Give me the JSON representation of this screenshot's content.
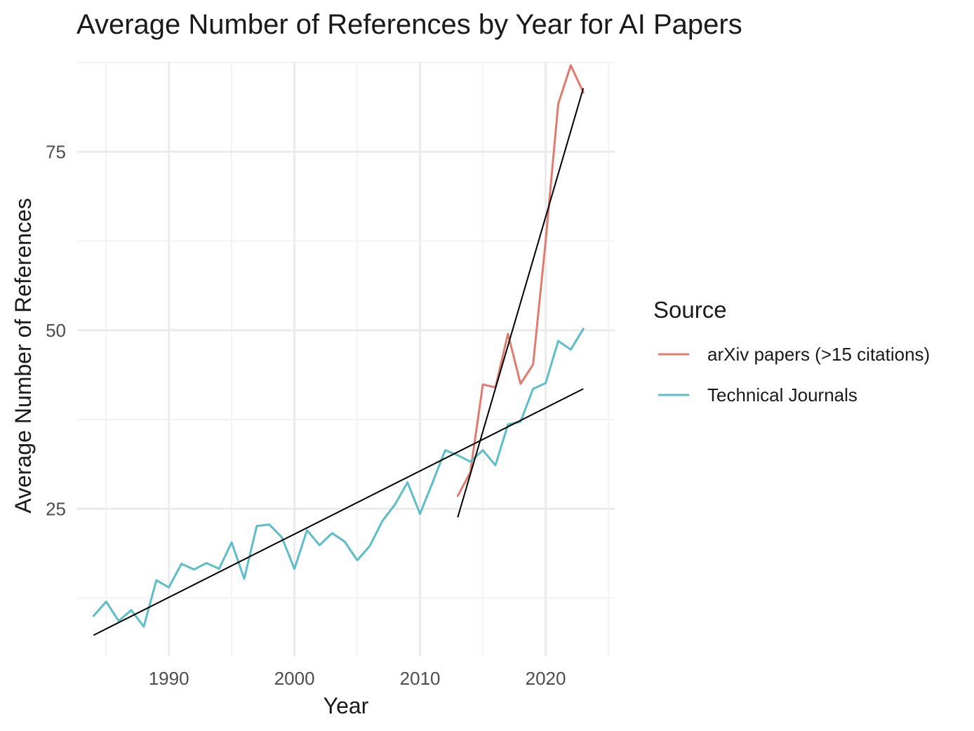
{
  "chart_data": {
    "type": "line",
    "title": "Average Number of References by Year for AI Papers",
    "xlabel": "Year",
    "ylabel": "Average Number of References",
    "xlim": [
      1982.7,
      2025.5
    ],
    "ylim": [
      4.3,
      87.6
    ],
    "x_ticks": [
      1990,
      2000,
      2010,
      2020
    ],
    "y_ticks": [
      25,
      50,
      75
    ],
    "x_minor_grid": [
      1985,
      1995,
      2005,
      2015,
      2025
    ],
    "y_minor_grid": [
      12.5,
      37.5,
      62.5,
      87.5
    ],
    "grid": true,
    "legend": {
      "title": "Source",
      "position": "right"
    },
    "series": [
      {
        "name": "arXiv papers (>15 citations)",
        "color": "#E07B6E",
        "x": [
          2013,
          2014,
          2015,
          2016,
          2017,
          2018,
          2019,
          2020,
          2021,
          2022,
          2023
        ],
        "values": [
          26.8,
          30.1,
          42.4,
          42.0,
          49.5,
          42.5,
          45.2,
          62.5,
          81.7,
          87.1,
          83.3
        ]
      },
      {
        "name": "Technical Journals",
        "color": "#5CBEC6",
        "x": [
          1984,
          1985,
          1986,
          1987,
          1988,
          1989,
          1990,
          1991,
          1992,
          1993,
          1994,
          1995,
          1996,
          1997,
          1998,
          1999,
          2000,
          2001,
          2002,
          2003,
          2004,
          2005,
          2006,
          2007,
          2008,
          2009,
          2010,
          2011,
          2012,
          2013,
          2014,
          2015,
          2016,
          2017,
          2018,
          2019,
          2020,
          2021,
          2022,
          2023
        ],
        "values": [
          10.0,
          12.0,
          9.3,
          10.8,
          8.5,
          15.0,
          14.0,
          17.3,
          16.5,
          17.4,
          16.6,
          20.3,
          15.2,
          22.6,
          22.8,
          21.0,
          16.6,
          22.0,
          19.9,
          21.6,
          20.4,
          17.8,
          19.8,
          23.3,
          25.6,
          28.7,
          24.3,
          28.7,
          33.2,
          32.5,
          31.6,
          33.2,
          31.1,
          36.8,
          37.2,
          41.8,
          42.6,
          48.5,
          47.3,
          50.2
        ]
      }
    ],
    "trend_lines": [
      {
        "name": "Technical Journals trend",
        "x": [
          1984,
          2023
        ],
        "values": [
          7.3,
          41.8
        ]
      },
      {
        "name": "arXiv papers trend",
        "x": [
          2013,
          2023
        ],
        "values": [
          23.8,
          83.9
        ]
      }
    ]
  }
}
